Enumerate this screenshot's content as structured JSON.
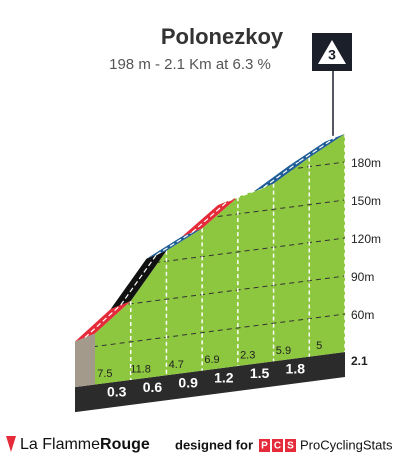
{
  "chart_data": {
    "type": "profile",
    "title": "Polonezkoy",
    "subtitle": "198 m - 2.1 Km at 6.3 %",
    "category": "3",
    "x": [
      0,
      0.3,
      0.6,
      0.9,
      1.2,
      1.5,
      1.8,
      2.1
    ],
    "values": [
      66,
      88,
      124,
      138,
      159,
      166,
      183,
      198
    ],
    "segments": [
      {
        "gradient": 7.5,
        "color": "#e52b3a"
      },
      {
        "gradient": 11.8,
        "color": "#111111"
      },
      {
        "gradient": 4.7,
        "color": "#1e5d96"
      },
      {
        "gradient": 6.9,
        "color": "#e52b3a"
      },
      {
        "gradient": 2.3,
        "color": "#62c51c"
      },
      {
        "gradient": 5.9,
        "color": "#1e5d96"
      },
      {
        "gradient": 5.0,
        "color": "#1e5d96"
      }
    ],
    "fill": "#8dc63f",
    "xlim": [
      0,
      2.1
    ],
    "xticks": [
      0.3,
      0.6,
      0.9,
      1.2,
      1.5,
      1.8,
      2.1
    ],
    "ylim": [
      60,
      180
    ],
    "yticks": [
      {
        "value": 60,
        "label": "60m"
      },
      {
        "value": 90,
        "label": "90m"
      },
      {
        "value": 120,
        "label": "120m"
      },
      {
        "value": 150,
        "label": "150m"
      },
      {
        "value": 180,
        "label": "180m"
      }
    ],
    "grid": true
  },
  "footer": {
    "brand_a": "La Flamme",
    "brand_b": "Rouge",
    "designed": "designed for",
    "pcs": [
      "P",
      "C",
      "S"
    ],
    "site": "ProCyclingStats"
  }
}
